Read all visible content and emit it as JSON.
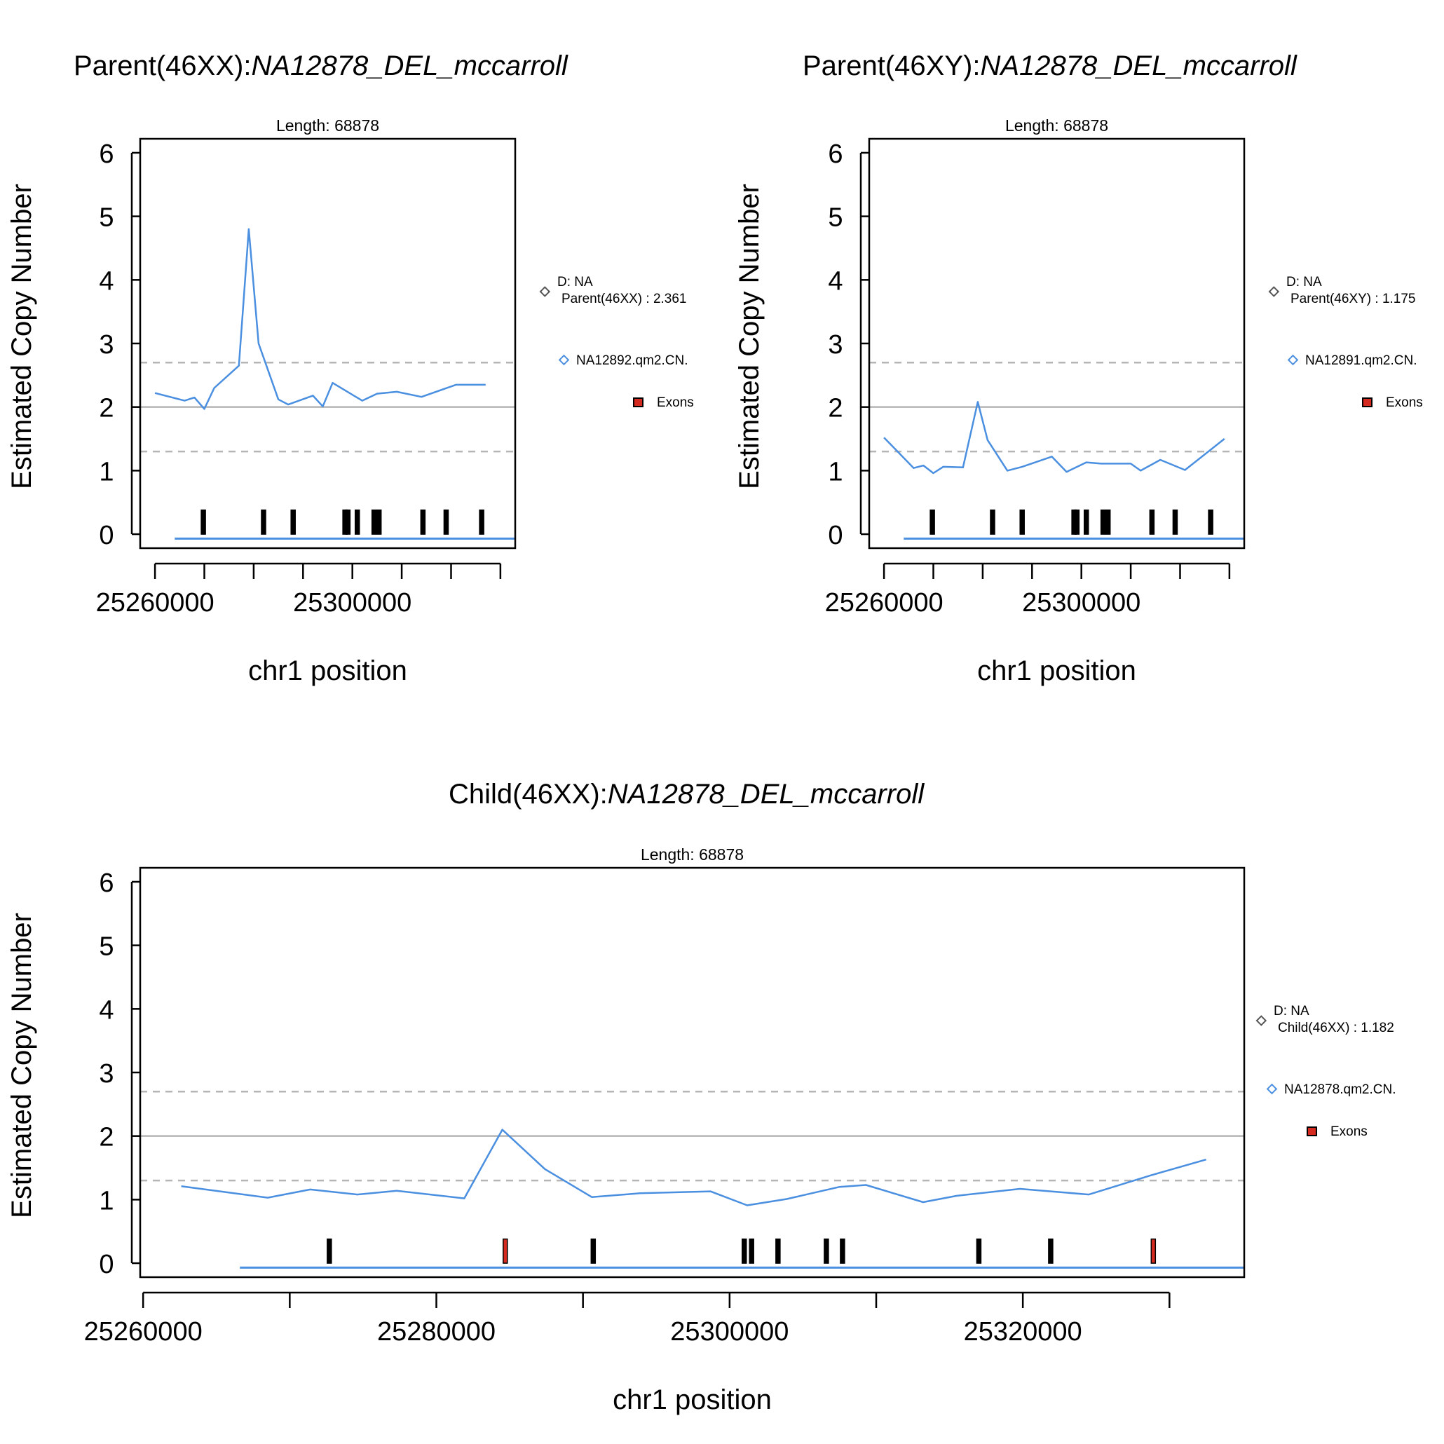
{
  "colors": {
    "series": "#4a8fe0",
    "exon_fill": "#d42a1f",
    "exon_stroke": "#000000",
    "ref_line": "#b5b5b5",
    "axis": "#000000",
    "legend_marker_d": "#555555"
  },
  "chart_data": [
    {
      "type": "line",
      "title_prefix": "Parent(46XX):",
      "title_italic": "NA12878_DEL_mccarroll",
      "subtitle": "Length: 68878",
      "xlabel": "chr1 position",
      "ylabel": "Estimated Copy Number",
      "xlim": [
        25257000,
        25333000
      ],
      "ylim": [
        -0.22,
        6.22
      ],
      "x_ticks": [
        25260000,
        25270000,
        25280000,
        25290000,
        25300000,
        25310000,
        25320000,
        25330000,
        25340000
      ],
      "x_tick_labels": [
        {
          "x": 25260000,
          "label": "25260000"
        },
        {
          "x": 25300000,
          "label": "25300000"
        }
      ],
      "y_ticks": [
        0,
        1,
        2,
        3,
        4,
        5,
        6
      ],
      "y_tick_labels": [
        "0",
        "1",
        "2",
        "3",
        "4",
        "5",
        "6"
      ],
      "reference_lines": {
        "solid": 2.0,
        "dashed": [
          2.7,
          1.3
        ]
      },
      "series": [
        {
          "name": "NA12892.qm2.CN.",
          "x": [
            25260000,
            25266000,
            25268000,
            25270000,
            25272000,
            25277000,
            25279000,
            25281000,
            25285000,
            25287000,
            25292000,
            25294000,
            25296000,
            25302000,
            25305000,
            25309000,
            25314000,
            25321000,
            25327000
          ],
          "values": [
            2.22,
            2.1,
            2.15,
            1.97,
            2.3,
            2.65,
            4.8,
            3.0,
            2.12,
            2.04,
            2.18,
            2.01,
            2.38,
            2.1,
            2.21,
            2.24,
            2.16,
            2.35,
            2.35
          ]
        }
      ],
      "exon_baseline": {
        "x_start": 25264000,
        "x_end": 25333000,
        "value": -0.07
      },
      "exons": [
        {
          "x": 25269800,
          "filled": false
        },
        {
          "x": 25282000,
          "filled": false
        },
        {
          "x": 25288000,
          "filled": false
        },
        {
          "x": 25298500,
          "filled": false
        },
        {
          "x": 25299100,
          "filled": false
        },
        {
          "x": 25301000,
          "filled": false
        },
        {
          "x": 25304400,
          "filled": false
        },
        {
          "x": 25305400,
          "filled": false
        },
        {
          "x": 25314300,
          "filled": false
        },
        {
          "x": 25319000,
          "filled": false
        },
        {
          "x": 25326200,
          "filled": false
        }
      ],
      "legend": {
        "d_label": "D: NA",
        "d_value": "Parent(46XX) : 2.361",
        "series_label": "NA12892.qm2.CN.",
        "exons_label": "Exons"
      }
    },
    {
      "type": "line",
      "title_prefix": "Parent(46XY):",
      "title_italic": "NA12878_DEL_mccarroll",
      "subtitle": "Length: 68878",
      "xlabel": "chr1 position",
      "ylabel": "Estimated Copy Number",
      "xlim": [
        25257000,
        25333000
      ],
      "ylim": [
        -0.22,
        6.22
      ],
      "x_ticks": [
        25260000,
        25270000,
        25280000,
        25290000,
        25300000,
        25310000,
        25320000,
        25330000,
        25340000
      ],
      "x_tick_labels": [
        {
          "x": 25260000,
          "label": "25260000"
        },
        {
          "x": 25300000,
          "label": "25300000"
        }
      ],
      "y_ticks": [
        0,
        1,
        2,
        3,
        4,
        5,
        6
      ],
      "y_tick_labels": [
        "0",
        "1",
        "2",
        "3",
        "4",
        "5",
        "6"
      ],
      "reference_lines": {
        "solid": 2.0,
        "dashed": [
          2.7,
          1.3
        ]
      },
      "series": [
        {
          "name": "NA12891.qm2.CN.",
          "x": [
            25260000,
            25266000,
            25268000,
            25270000,
            25272000,
            25276000,
            25279000,
            25281000,
            25285000,
            25288000,
            25294000,
            25297000,
            25301000,
            25304000,
            25310000,
            25312000,
            25316000,
            25321000,
            25329000
          ],
          "values": [
            1.52,
            1.04,
            1.08,
            0.96,
            1.06,
            1.05,
            2.08,
            1.48,
            1.0,
            1.06,
            1.22,
            0.98,
            1.13,
            1.11,
            1.11,
            1.0,
            1.17,
            1.01,
            1.5
          ]
        }
      ],
      "exon_baseline": {
        "x_start": 25264000,
        "x_end": 25333000,
        "value": -0.07
      },
      "exons": [
        {
          "x": 25269800,
          "filled": false
        },
        {
          "x": 25282000,
          "filled": false
        },
        {
          "x": 25288000,
          "filled": false
        },
        {
          "x": 25298500,
          "filled": false
        },
        {
          "x": 25299100,
          "filled": false
        },
        {
          "x": 25301000,
          "filled": false
        },
        {
          "x": 25304400,
          "filled": false
        },
        {
          "x": 25305400,
          "filled": false
        },
        {
          "x": 25314300,
          "filled": false
        },
        {
          "x": 25319000,
          "filled": false
        },
        {
          "x": 25326200,
          "filled": false
        }
      ],
      "legend": {
        "d_label": "D: NA",
        "d_value": "Parent(46XY) : 1.175",
        "series_label": "NA12891.qm2.CN.",
        "exons_label": "Exons"
      }
    },
    {
      "type": "line",
      "title_prefix": "Child(46XX):",
      "title_italic": "NA12878_DEL_mccarroll",
      "subtitle": "Length: 68878",
      "xlabel": "chr1 position",
      "ylabel": "Estimated Copy Number",
      "xlim": [
        25259800,
        25335100
      ],
      "ylim": [
        -0.22,
        6.22
      ],
      "x_ticks": [
        25260000,
        25270000,
        25280000,
        25290000,
        25300000,
        25310000,
        25320000,
        25330000
      ],
      "x_tick_labels": [
        {
          "x": 25260000,
          "label": "25260000"
        },
        {
          "x": 25280000,
          "label": "25280000"
        },
        {
          "x": 25300000,
          "label": "25300000"
        },
        {
          "x": 25320000,
          "label": "25320000"
        }
      ],
      "y_ticks": [
        0,
        1,
        2,
        3,
        4,
        5,
        6
      ],
      "y_tick_labels": [
        "0",
        "1",
        "2",
        "3",
        "4",
        "5",
        "6"
      ],
      "reference_lines": {
        "solid": 2.0,
        "dashed": [
          2.7,
          1.3
        ]
      },
      "series": [
        {
          "name": "NA12878.qm2.CN.",
          "x": [
            25262600,
            25268500,
            25271400,
            25274600,
            25277300,
            25281900,
            25284500,
            25287400,
            25290600,
            25293900,
            25298700,
            25301200,
            25303900,
            25307500,
            25309300,
            25313200,
            25315500,
            25319800,
            25324500,
            25328700,
            25332500
          ],
          "values": [
            1.21,
            1.03,
            1.16,
            1.08,
            1.14,
            1.02,
            2.1,
            1.48,
            1.04,
            1.1,
            1.13,
            0.91,
            1.01,
            1.2,
            1.23,
            0.96,
            1.06,
            1.17,
            1.08,
            1.38,
            1.63
          ]
        }
      ],
      "exon_baseline": {
        "x_start": 25266600,
        "x_end": 25335100,
        "value": -0.07
      },
      "exons": [
        {
          "x": 25272700,
          "filled": false
        },
        {
          "x": 25284700,
          "filled": true
        },
        {
          "x": 25290700,
          "filled": false
        },
        {
          "x": 25301000,
          "filled": false
        },
        {
          "x": 25301500,
          "filled": false
        },
        {
          "x": 25303300,
          "filled": false
        },
        {
          "x": 25306600,
          "filled": false
        },
        {
          "x": 25307700,
          "filled": false
        },
        {
          "x": 25317000,
          "filled": false
        },
        {
          "x": 25321900,
          "filled": false
        },
        {
          "x": 25328900,
          "filled": true
        }
      ],
      "legend": {
        "d_label": "D: NA",
        "d_value": "Child(46XX) : 1.182",
        "series_label": "NA12878.qm2.CN.",
        "exons_label": "Exons"
      }
    }
  ]
}
